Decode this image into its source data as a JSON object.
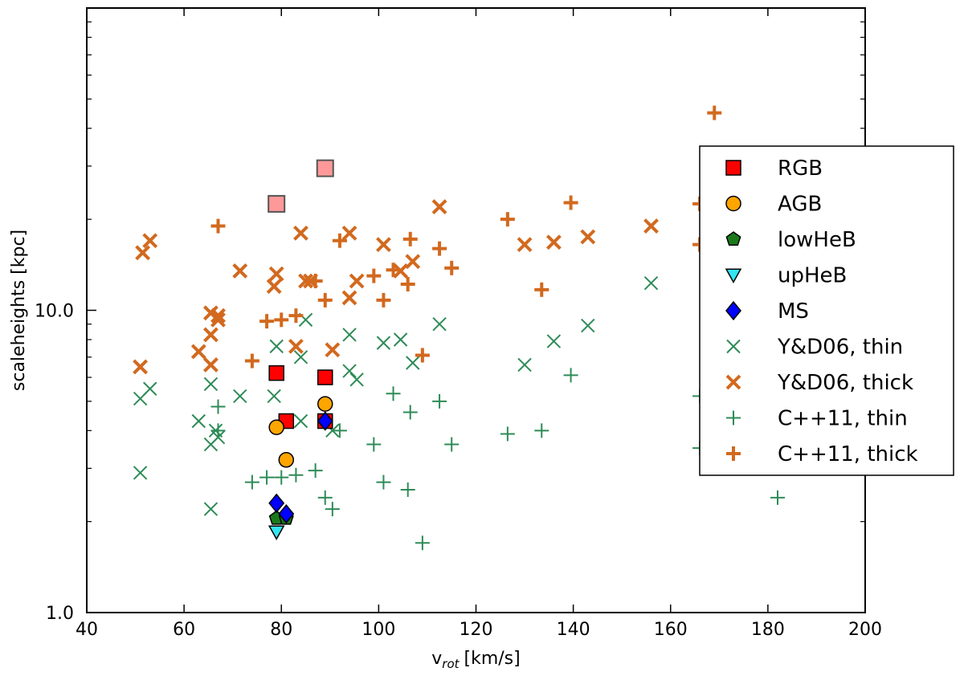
{
  "chart_data": {
    "type": "scatter",
    "title": "",
    "xlabel": "v",
    "xlabel_sub": "rot",
    "xlabel_unit": "[km/s]",
    "ylabel": "scaleheights [kpc]",
    "xlim": [
      40,
      200
    ],
    "ylim": [
      1.0,
      100.0
    ],
    "yscale": "log",
    "x_ticks": [
      40,
      60,
      80,
      100,
      120,
      140,
      160,
      180,
      200
    ],
    "x_tick_labels": [
      "40",
      "60",
      "80",
      "100",
      "120",
      "140",
      "160",
      "180",
      "200"
    ],
    "y_ticks": [
      1.0,
      10.0
    ],
    "y_tick_labels": [
      "1.0",
      "10.0"
    ],
    "legend_position": "right",
    "highlighted_points": [
      {
        "x": 79,
        "y": 22.5,
        "color": "#ff9999"
      },
      {
        "x": 89,
        "y": 29.5,
        "color": "#ff9999"
      }
    ],
    "series": [
      {
        "name": "Y&D06, thin",
        "marker": "x",
        "color": "#2e8b57",
        "points": [
          [
            51,
            5.1
          ],
          [
            53,
            5.5
          ],
          [
            51,
            2.9
          ],
          [
            63,
            4.3
          ],
          [
            65.5,
            5.7
          ],
          [
            65.5,
            3.6
          ],
          [
            66.5,
            4.0
          ],
          [
            67,
            3.8
          ],
          [
            65.5,
            2.2
          ],
          [
            71.5,
            5.2
          ],
          [
            78.5,
            5.2
          ],
          [
            79,
            7.6
          ],
          [
            84,
            7.0
          ],
          [
            85,
            9.3
          ],
          [
            84,
            4.3
          ],
          [
            90.5,
            4.0
          ],
          [
            94,
            8.3
          ],
          [
            94,
            6.3
          ],
          [
            95.5,
            5.9
          ],
          [
            101,
            7.8
          ],
          [
            104.5,
            8.0
          ],
          [
            107,
            6.7
          ],
          [
            112.5,
            9.0
          ],
          [
            130,
            6.6
          ],
          [
            136,
            7.9
          ],
          [
            143,
            8.9
          ],
          [
            156,
            12.3
          ]
        ]
      },
      {
        "name": "Y&D06, thick",
        "marker": "x-bold",
        "color": "#d2691e",
        "points": [
          [
            51.5,
            15.5
          ],
          [
            53,
            17.0
          ],
          [
            51,
            6.5
          ],
          [
            63,
            7.3
          ],
          [
            65.5,
            9.8
          ],
          [
            65.5,
            8.3
          ],
          [
            65.5,
            6.6
          ],
          [
            67,
            9.3
          ],
          [
            67,
            9.6
          ],
          [
            71.5,
            13.5
          ],
          [
            78.5,
            12.0
          ],
          [
            79,
            13.2
          ],
          [
            83,
            7.6
          ],
          [
            84,
            18.0
          ],
          [
            85,
            12.5
          ],
          [
            86,
            12.5
          ],
          [
            90.5,
            7.4
          ],
          [
            94,
            11.0
          ],
          [
            94,
            18.0
          ],
          [
            95.5,
            12.5
          ],
          [
            101,
            16.5
          ],
          [
            104.5,
            13.5
          ],
          [
            107,
            14.5
          ],
          [
            112.5,
            22.0
          ],
          [
            130,
            16.5
          ],
          [
            136,
            16.8
          ],
          [
            143,
            17.5
          ],
          [
            156,
            19.0
          ]
        ]
      },
      {
        "name": "C++11, thin",
        "marker": "+",
        "color": "#2e8b57",
        "points": [
          [
            67,
            4.8
          ],
          [
            67,
            4.0
          ],
          [
            74,
            2.7
          ],
          [
            77,
            2.8
          ],
          [
            80,
            2.8
          ],
          [
            83,
            2.85
          ],
          [
            87,
            2.95
          ],
          [
            89,
            2.4
          ],
          [
            90.5,
            2.2
          ],
          [
            92,
            4.0
          ],
          [
            99,
            3.6
          ],
          [
            101,
            2.7
          ],
          [
            103,
            5.3
          ],
          [
            106,
            2.55
          ],
          [
            106.5,
            4.6
          ],
          [
            109,
            1.7
          ],
          [
            112.5,
            5.0
          ],
          [
            115,
            3.6
          ],
          [
            126.5,
            3.9
          ],
          [
            133.5,
            4.0
          ],
          [
            139.5,
            6.1
          ],
          [
            166,
            5.2
          ],
          [
            166,
            3.5
          ],
          [
            182,
            2.4
          ]
        ]
      },
      {
        "name": "C++11, thick",
        "marker": "+-bold",
        "color": "#d2691e",
        "points": [
          [
            67,
            19.0
          ],
          [
            74,
            6.8
          ],
          [
            77,
            9.2
          ],
          [
            80,
            9.3
          ],
          [
            83,
            9.6
          ],
          [
            87,
            12.5
          ],
          [
            89,
            10.8
          ],
          [
            92,
            17.0
          ],
          [
            99,
            13.0
          ],
          [
            101,
            10.8
          ],
          [
            103,
            13.6
          ],
          [
            106,
            12.2
          ],
          [
            106.5,
            17.2
          ],
          [
            109,
            7.1
          ],
          [
            112.5,
            16.0
          ],
          [
            115,
            13.8
          ],
          [
            126.5,
            20.0
          ],
          [
            133.5,
            11.7
          ],
          [
            139.5,
            22.7
          ],
          [
            166,
            16.5
          ],
          [
            166,
            22.5
          ],
          [
            169,
            45.0
          ]
        ]
      },
      {
        "name": "RGB",
        "marker": "square",
        "color": "#ff0000",
        "points": [
          [
            79,
            6.2
          ],
          [
            89,
            6.0
          ],
          [
            81,
            4.3
          ],
          [
            89,
            4.3
          ]
        ]
      },
      {
        "name": "AGB",
        "marker": "circle",
        "color": "#ffa500",
        "points": [
          [
            79,
            4.1
          ],
          [
            89,
            4.9
          ],
          [
            81,
            3.2
          ]
        ]
      },
      {
        "name": "lowHeB",
        "marker": "pentagon",
        "color": "#1a7a1a",
        "points": [
          [
            79,
            2.05
          ],
          [
            81,
            2.05
          ]
        ]
      },
      {
        "name": "upHeB",
        "marker": "triangle-down",
        "color": "#33e5f0",
        "points": [
          [
            79,
            1.85
          ]
        ]
      },
      {
        "name": "MS",
        "marker": "diamond",
        "color": "#0000ff",
        "points": [
          [
            79,
            2.3
          ],
          [
            81,
            2.12
          ],
          [
            89,
            4.3
          ]
        ]
      }
    ],
    "legend": [
      {
        "label": "RGB",
        "marker": "square",
        "color": "#ff0000"
      },
      {
        "label": "AGB",
        "marker": "circle",
        "color": "#ffa500"
      },
      {
        "label": "lowHeB",
        "marker": "pentagon",
        "color": "#1a7a1a"
      },
      {
        "label": "upHeB",
        "marker": "triangle-down",
        "color": "#33e5f0"
      },
      {
        "label": "MS",
        "marker": "diamond",
        "color": "#0000ff"
      },
      {
        "label": "Y&D06, thin",
        "marker": "x",
        "color": "#2e8b57"
      },
      {
        "label": "Y&D06, thick",
        "marker": "x-bold",
        "color": "#d2691e"
      },
      {
        "label": "C++11, thin",
        "marker": "+",
        "color": "#2e8b57"
      },
      {
        "label": "C++11, thick",
        "marker": "+-bold",
        "color": "#d2691e"
      }
    ]
  }
}
